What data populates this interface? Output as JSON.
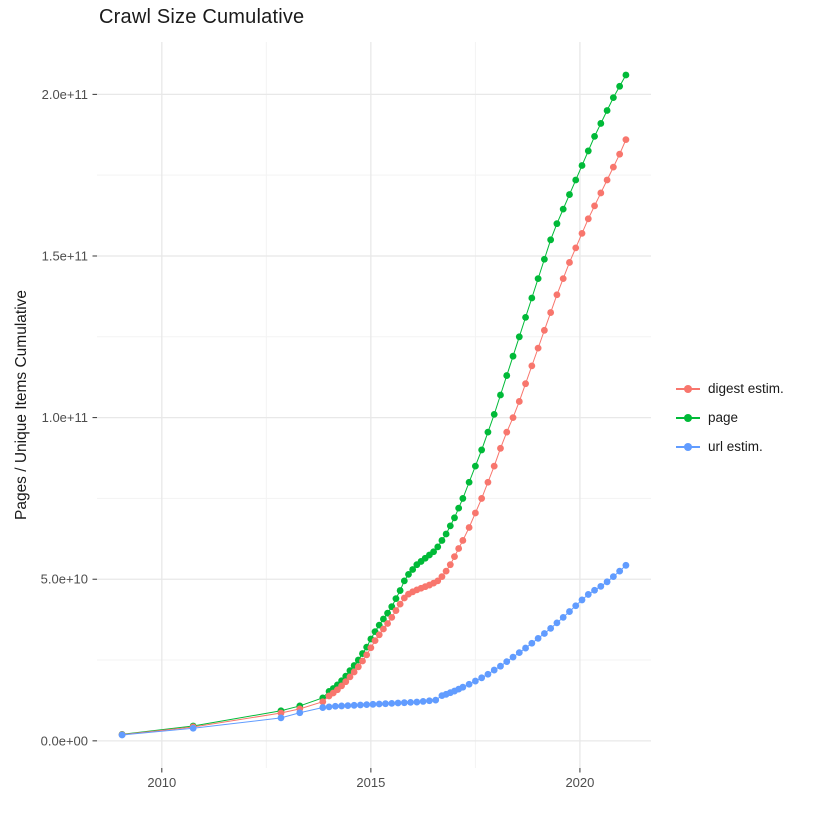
{
  "chart_data": {
    "type": "scatter",
    "title": "Crawl Size Cumulative",
    "xlabel": "",
    "ylabel": "Pages / Unique Items Cumulative",
    "y_unit": "1e9",
    "xlim": [
      2008.45,
      2021.7
    ],
    "ylim": [
      -8.4,
      216.2
    ],
    "grid": true,
    "legend_position": "right",
    "x_ticks": {
      "major_values": [
        2010,
        2015,
        2020
      ],
      "major_labels": [
        "2010",
        "2015",
        "2020"
      ],
      "minor_values": [
        2012.5,
        2017.5
      ]
    },
    "y_ticks": {
      "major_values": [
        0,
        50,
        100,
        150,
        200
      ],
      "major_labels": [
        "0.0e+00",
        "5.0e+10",
        "1.0e+11",
        "1.5e+11",
        "2.0e+11"
      ],
      "minor_values": [
        25,
        75,
        125,
        175
      ]
    },
    "draw_order": [
      1,
      0,
      2
    ],
    "series": [
      {
        "name": "digest estim.",
        "color": "#F8766D",
        "points": [
          [
            2009.05,
            1.9
          ],
          [
            2010.75,
            4.3
          ],
          [
            2012.85,
            8.6
          ],
          [
            2013.3,
            9.9
          ],
          [
            2013.85,
            12.1
          ],
          [
            2014.0,
            13.9
          ],
          [
            2014.1,
            14.8
          ],
          [
            2014.2,
            15.8
          ],
          [
            2014.3,
            17.0
          ],
          [
            2014.4,
            18.3
          ],
          [
            2014.5,
            19.8
          ],
          [
            2014.6,
            21.3
          ],
          [
            2014.7,
            22.9
          ],
          [
            2014.8,
            24.7
          ],
          [
            2014.9,
            26.6
          ],
          [
            2015.0,
            28.8
          ],
          [
            2015.1,
            31.0
          ],
          [
            2015.2,
            32.8
          ],
          [
            2015.3,
            34.6
          ],
          [
            2015.4,
            36.3
          ],
          [
            2015.5,
            38.2
          ],
          [
            2015.6,
            40.3
          ],
          [
            2015.7,
            42.3
          ],
          [
            2015.8,
            44.2
          ],
          [
            2015.9,
            45.4
          ],
          [
            2016.0,
            46.1
          ],
          [
            2016.1,
            46.7
          ],
          [
            2016.2,
            47.2
          ],
          [
            2016.3,
            47.7
          ],
          [
            2016.4,
            48.2
          ],
          [
            2016.5,
            48.8
          ],
          [
            2016.6,
            49.5
          ],
          [
            2016.7,
            50.8
          ],
          [
            2016.8,
            52.5
          ],
          [
            2016.9,
            54.5
          ],
          [
            2017.0,
            57.0
          ],
          [
            2017.1,
            59.5
          ],
          [
            2017.2,
            62.0
          ],
          [
            2017.35,
            66.0
          ],
          [
            2017.5,
            70.5
          ],
          [
            2017.65,
            75.0
          ],
          [
            2017.8,
            80.0
          ],
          [
            2017.95,
            85.0
          ],
          [
            2018.1,
            90.5
          ],
          [
            2018.25,
            95.5
          ],
          [
            2018.4,
            100.0
          ],
          [
            2018.55,
            105.0
          ],
          [
            2018.7,
            110.5
          ],
          [
            2018.85,
            116.0
          ],
          [
            2019.0,
            121.5
          ],
          [
            2019.15,
            127.0
          ],
          [
            2019.3,
            132.5
          ],
          [
            2019.45,
            138.0
          ],
          [
            2019.6,
            143.0
          ],
          [
            2019.75,
            148.0
          ],
          [
            2019.9,
            152.5
          ],
          [
            2020.05,
            157.0
          ],
          [
            2020.2,
            161.5
          ],
          [
            2020.35,
            165.5
          ],
          [
            2020.5,
            169.5
          ],
          [
            2020.65,
            173.5
          ],
          [
            2020.8,
            177.5
          ],
          [
            2020.95,
            181.5
          ],
          [
            2021.1,
            186.0
          ]
        ]
      },
      {
        "name": "page",
        "color": "#00BA38",
        "points": [
          [
            2009.05,
            2.0
          ],
          [
            2010.75,
            4.6
          ],
          [
            2012.85,
            9.3
          ],
          [
            2013.3,
            10.8
          ],
          [
            2013.85,
            13.3
          ],
          [
            2014.0,
            15.3
          ],
          [
            2014.1,
            16.2
          ],
          [
            2014.2,
            17.3
          ],
          [
            2014.3,
            18.6
          ],
          [
            2014.4,
            20.0
          ],
          [
            2014.5,
            21.7
          ],
          [
            2014.6,
            23.3
          ],
          [
            2014.7,
            25.0
          ],
          [
            2014.8,
            27.0
          ],
          [
            2014.9,
            29.0
          ],
          [
            2015.0,
            31.5
          ],
          [
            2015.1,
            33.8
          ],
          [
            2015.2,
            35.8
          ],
          [
            2015.3,
            37.7
          ],
          [
            2015.4,
            39.5
          ],
          [
            2015.5,
            41.5
          ],
          [
            2015.6,
            44.0
          ],
          [
            2015.7,
            46.5
          ],
          [
            2015.8,
            49.5
          ],
          [
            2015.9,
            51.5
          ],
          [
            2016.0,
            53.0
          ],
          [
            2016.1,
            54.5
          ],
          [
            2016.2,
            55.5
          ],
          [
            2016.3,
            56.5
          ],
          [
            2016.4,
            57.5
          ],
          [
            2016.5,
            58.5
          ],
          [
            2016.6,
            60.0
          ],
          [
            2016.7,
            62.0
          ],
          [
            2016.8,
            64.0
          ],
          [
            2016.9,
            66.5
          ],
          [
            2017.0,
            69.0
          ],
          [
            2017.1,
            72.0
          ],
          [
            2017.2,
            75.0
          ],
          [
            2017.35,
            80.0
          ],
          [
            2017.5,
            85.0
          ],
          [
            2017.65,
            90.0
          ],
          [
            2017.8,
            95.5
          ],
          [
            2017.95,
            101.0
          ],
          [
            2018.1,
            107.0
          ],
          [
            2018.25,
            113.0
          ],
          [
            2018.4,
            119.0
          ],
          [
            2018.55,
            125.0
          ],
          [
            2018.7,
            131.0
          ],
          [
            2018.85,
            137.0
          ],
          [
            2019.0,
            143.0
          ],
          [
            2019.15,
            149.0
          ],
          [
            2019.3,
            155.0
          ],
          [
            2019.45,
            160.0
          ],
          [
            2019.6,
            164.5
          ],
          [
            2019.75,
            169.0
          ],
          [
            2019.9,
            173.5
          ],
          [
            2020.05,
            178.0
          ],
          [
            2020.2,
            182.5
          ],
          [
            2020.35,
            187.0
          ],
          [
            2020.5,
            191.0
          ],
          [
            2020.65,
            195.0
          ],
          [
            2020.8,
            199.0
          ],
          [
            2020.95,
            202.5
          ],
          [
            2021.1,
            206.0
          ]
        ]
      },
      {
        "name": "url estim.",
        "color": "#619CFF",
        "points": [
          [
            2009.05,
            1.8
          ],
          [
            2010.75,
            3.9
          ],
          [
            2012.85,
            7.1
          ],
          [
            2013.3,
            8.7
          ],
          [
            2013.85,
            10.3
          ],
          [
            2014.0,
            10.5
          ],
          [
            2014.15,
            10.7
          ],
          [
            2014.3,
            10.8
          ],
          [
            2014.45,
            10.9
          ],
          [
            2014.6,
            11.0
          ],
          [
            2014.75,
            11.1
          ],
          [
            2014.9,
            11.2
          ],
          [
            2015.05,
            11.3
          ],
          [
            2015.2,
            11.4
          ],
          [
            2015.35,
            11.5
          ],
          [
            2015.5,
            11.6
          ],
          [
            2015.65,
            11.7
          ],
          [
            2015.8,
            11.8
          ],
          [
            2015.95,
            11.9
          ],
          [
            2016.1,
            12.0
          ],
          [
            2016.25,
            12.2
          ],
          [
            2016.4,
            12.4
          ],
          [
            2016.55,
            12.6
          ],
          [
            2016.7,
            14.0
          ],
          [
            2016.8,
            14.4
          ],
          [
            2016.9,
            14.9
          ],
          [
            2017.0,
            15.4
          ],
          [
            2017.1,
            16.0
          ],
          [
            2017.2,
            16.6
          ],
          [
            2017.35,
            17.5
          ],
          [
            2017.5,
            18.5
          ],
          [
            2017.65,
            19.5
          ],
          [
            2017.8,
            20.6
          ],
          [
            2017.95,
            21.9
          ],
          [
            2018.1,
            23.1
          ],
          [
            2018.25,
            24.5
          ],
          [
            2018.4,
            25.9
          ],
          [
            2018.55,
            27.3
          ],
          [
            2018.7,
            28.7
          ],
          [
            2018.85,
            30.2
          ],
          [
            2019.0,
            31.7
          ],
          [
            2019.15,
            33.2
          ],
          [
            2019.3,
            34.8
          ],
          [
            2019.45,
            36.5
          ],
          [
            2019.6,
            38.2
          ],
          [
            2019.75,
            40.0
          ],
          [
            2019.9,
            41.8
          ],
          [
            2020.05,
            43.6
          ],
          [
            2020.2,
            45.3
          ],
          [
            2020.35,
            46.6
          ],
          [
            2020.5,
            47.8
          ],
          [
            2020.65,
            49.2
          ],
          [
            2020.8,
            50.8
          ],
          [
            2020.95,
            52.5
          ],
          [
            2021.1,
            54.3
          ]
        ]
      }
    ],
    "colors": {
      "grid_major": "#E8E8E8",
      "grid_minor": "#F3F3F3",
      "axis_text": "#4D4D4D",
      "tick_mark": "#333333",
      "background": "#FFFFFF"
    }
  }
}
